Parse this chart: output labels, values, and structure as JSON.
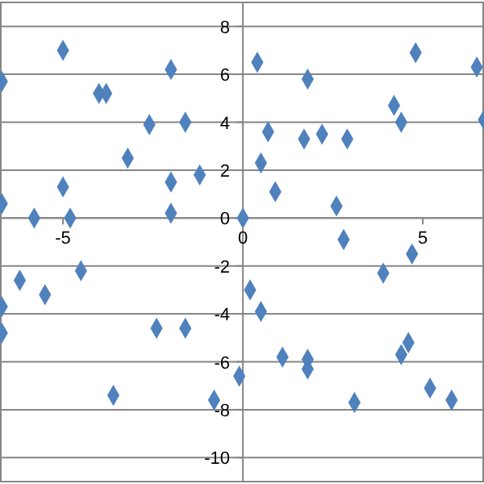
{
  "chart_data": {
    "type": "scatter",
    "marker": "diamond",
    "grid": "y",
    "xlim": [
      -6.75,
      6.7
    ],
    "ylim": [
      -11,
      9
    ],
    "xticks": [
      -5,
      0,
      5
    ],
    "yticks": [
      -10,
      -8,
      -6,
      -4,
      -2,
      0,
      2,
      4,
      6,
      8
    ],
    "series": [
      {
        "color": "#4f81bd",
        "x": [
          -6.7,
          -5.0,
          -4.0,
          -3.8,
          -2.0,
          -2.6,
          -1.6,
          -3.2,
          -1.2,
          -2.0,
          -5.0,
          -6.7,
          -5.8,
          -4.8,
          -2.0,
          0,
          0.4,
          1.8,
          4.8,
          6.5,
          4.2,
          4.4,
          6.7,
          0.7,
          1.7,
          2.2,
          2.9,
          0.5,
          0.9,
          2.6,
          2.8,
          -4.5,
          -6.2,
          -5.5,
          -6.7,
          -6.7,
          -2.4,
          -1.6,
          -0.1,
          -3.6,
          -0.8,
          4.7,
          0.2,
          3.9,
          0.5,
          4.6,
          4.4,
          1.1,
          1.8,
          1.8,
          5.2,
          5.8,
          3.1
        ],
        "values": [
          5.7,
          7.0,
          5.2,
          5.2,
          6.2,
          3.9,
          4.0,
          2.5,
          1.8,
          1.5,
          1.3,
          0.6,
          0.0,
          0.0,
          0.2,
          0,
          6.5,
          5.8,
          6.9,
          6.3,
          4.7,
          4.0,
          4.1,
          3.6,
          3.3,
          3.5,
          3.3,
          2.3,
          1.1,
          0.5,
          -0.9,
          -2.2,
          -2.6,
          -3.2,
          -3.7,
          -4.8,
          -4.6,
          -4.6,
          -6.6,
          -7.4,
          -7.6,
          -1.5,
          -3.0,
          -2.3,
          -3.9,
          -5.2,
          -5.7,
          -5.8,
          -5.9,
          -6.3,
          -7.1,
          -7.6,
          -7.7
        ]
      }
    ]
  }
}
